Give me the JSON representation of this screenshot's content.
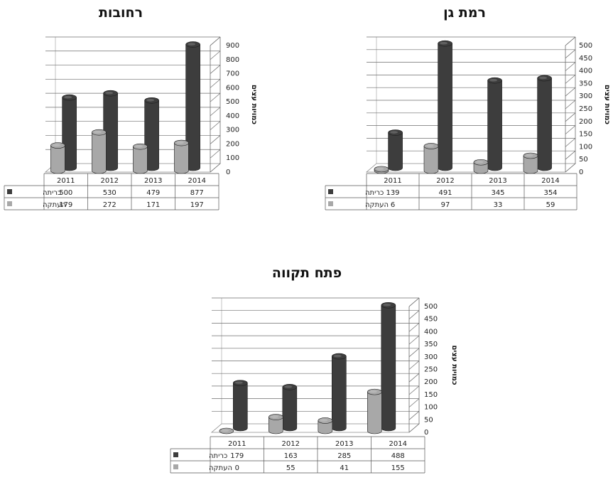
{
  "chart_data": [
    {
      "type": "bar",
      "title": "רחובות",
      "ylabel": "כמויות עצים",
      "categories": [
        "2011",
        "2012",
        "2013",
        "2014"
      ],
      "ylim": [
        0,
        900
      ],
      "y_ticks": [
        0,
        100,
        200,
        300,
        400,
        500,
        600,
        700,
        800,
        900
      ],
      "series": [
        {
          "name": "כריתה",
          "color": "#3d3d3d",
          "values": [
            500,
            530,
            479,
            877
          ]
        },
        {
          "name": "העתקה",
          "color": "#a8a8a8",
          "values": [
            179,
            272,
            171,
            197
          ]
        }
      ],
      "grid": true,
      "legend": "data-table"
    },
    {
      "type": "bar",
      "title": "רמת גן",
      "ylabel": "כמויות עצים",
      "categories": [
        "2011",
        "2012",
        "2013",
        "2014"
      ],
      "ylim": [
        0,
        500
      ],
      "y_ticks": [
        0,
        50,
        100,
        150,
        200,
        250,
        300,
        350,
        400,
        450,
        500
      ],
      "series": [
        {
          "name": "כריתה",
          "color": "#3d3d3d",
          "values": [
            139,
            491,
            345,
            354
          ]
        },
        {
          "name": "העתקה",
          "color": "#a8a8a8",
          "values": [
            6,
            97,
            33,
            59
          ]
        }
      ],
      "grid": true,
      "legend": "data-table"
    },
    {
      "type": "bar",
      "title": "פתח תקווה",
      "ylabel": "כמויות עצים",
      "categories": [
        "2011",
        "2012",
        "2013",
        "2014"
      ],
      "ylim": [
        0,
        500
      ],
      "y_ticks": [
        0,
        50,
        100,
        150,
        200,
        250,
        300,
        350,
        400,
        450,
        500
      ],
      "series": [
        {
          "name": "כריתה",
          "color": "#3d3d3d",
          "values": [
            179,
            163,
            285,
            488
          ]
        },
        {
          "name": "העתקה",
          "color": "#a8a8a8",
          "values": [
            0,
            55,
            41,
            155
          ]
        }
      ],
      "grid": true,
      "legend": "data-table"
    }
  ]
}
